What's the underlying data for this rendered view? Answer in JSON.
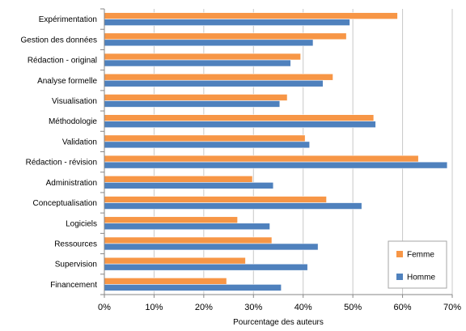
{
  "chart_data": {
    "type": "bar",
    "orientation": "horizontal",
    "title": "",
    "xlabel": "Pourcentage des auteurs",
    "ylabel": "",
    "xlim": [
      0,
      70
    ],
    "x_ticks": [
      "0%",
      "10%",
      "20%",
      "30%",
      "40%",
      "50%",
      "60%",
      "70%"
    ],
    "grid": "vertical",
    "legend_position": "bottom-right",
    "categories": [
      "Expérimentation",
      "Gestion des données",
      "Rédaction - original",
      "Analyse formelle",
      "Visualisation",
      "Méthodologie",
      "Validation",
      "Rédaction - révision",
      "Administration",
      "Conceptualisation",
      "Logiciels",
      "Ressources",
      "Supervision",
      "Financement"
    ],
    "series": [
      {
        "name": "Femme",
        "color": "#F79646",
        "values": [
          59,
          48.7,
          39.5,
          46,
          36.8,
          54.2,
          40.4,
          63.2,
          29.8,
          44.7,
          26.8,
          33.7,
          28.4,
          24.6
        ]
      },
      {
        "name": "Homme",
        "color": "#4F81BD",
        "values": [
          49.4,
          42,
          37.5,
          44,
          35.3,
          54.6,
          41.3,
          69,
          34,
          51.8,
          33.3,
          43,
          40.9,
          35.6
        ]
      }
    ]
  }
}
